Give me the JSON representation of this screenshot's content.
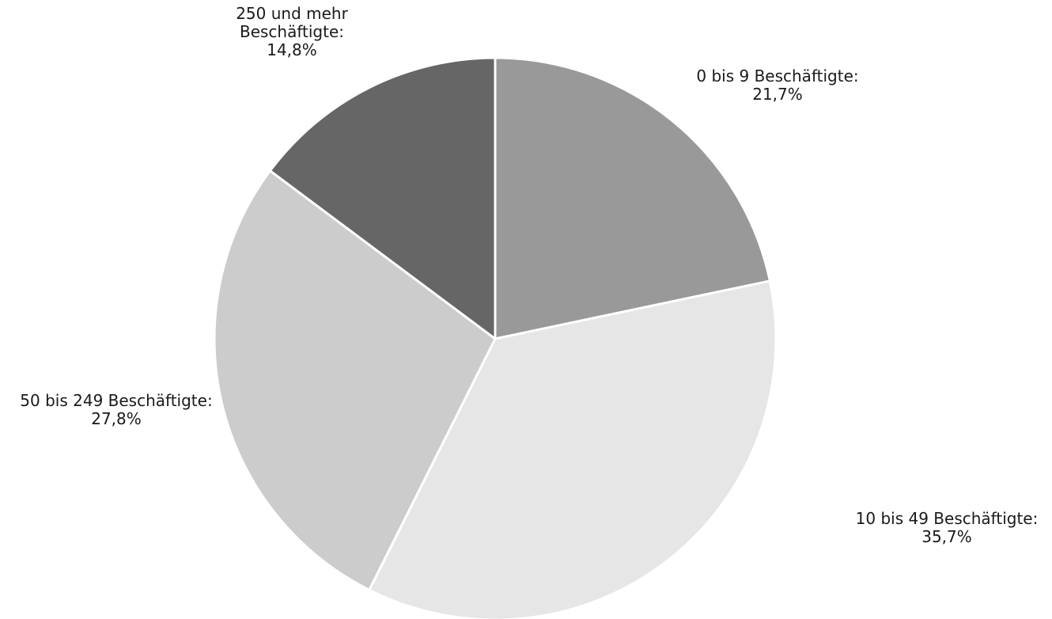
{
  "chart_data": {
    "type": "pie",
    "title": "",
    "start_angle_deg": 0,
    "direction": "clockwise",
    "legend": "none",
    "slices": [
      {
        "label": "0 bis 9 Beschäftigte:",
        "value": 21.7,
        "value_label": "21,7%",
        "color": "#999999"
      },
      {
        "label": "10 bis 49 Beschäftigte:",
        "value": 35.7,
        "value_label": "35,7%",
        "color": "#e6e6e6"
      },
      {
        "label": "50 bis 249 Beschäftigte:",
        "value": 27.8,
        "value_label": "27,8%",
        "color": "#cccccc"
      },
      {
        "label": "250 und mehr Beschäftigte:",
        "value": 14.8,
        "value_label": "14,8%",
        "color": "#666666"
      }
    ]
  }
}
